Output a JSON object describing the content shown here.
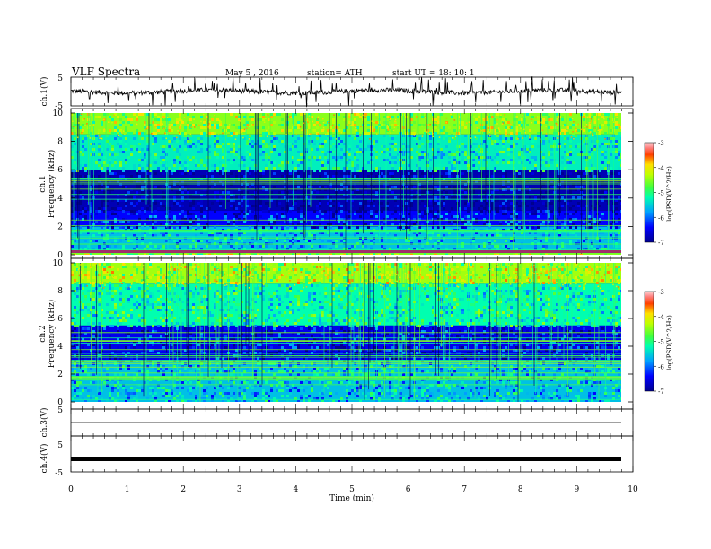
{
  "header": {
    "title": "VLF  Spectra",
    "date": "May 5  , 2016",
    "station": "station= ATH",
    "start": "start  UT  =    18: 10: 1"
  },
  "chart_data": [
    {
      "type": "line",
      "name": "ch1-waveform",
      "ylabel": "ch.1(V)",
      "ylim": [
        -5,
        5
      ],
      "yticks": [
        "5",
        "-5"
      ],
      "baseline": 0,
      "appearance": "dense noisy trace with sharp spikes",
      "xlim": [
        0,
        10
      ]
    },
    {
      "type": "heatmap",
      "name": "ch1-spectrogram",
      "ylabel_1": "ch.1",
      "ylabel_2": "Frequency  (kHz)",
      "ylim": [
        0,
        10
      ],
      "yticks": [
        "0",
        "2",
        "4",
        "6",
        "8",
        "10"
      ],
      "xlim": [
        0,
        9.8
      ],
      "colorbar": {
        "label": "log(PSD(V^2/Hz)",
        "range": [
          -7,
          -3
        ],
        "ticks": [
          "-3",
          "-4",
          "-5",
          "-6",
          "-7"
        ]
      },
      "bands_kHz": [
        {
          "from": 0.0,
          "to": 0.3,
          "level": -4.5
        },
        {
          "from": 0.3,
          "to": 2.0,
          "level": -5.6
        },
        {
          "from": 2.0,
          "to": 3.1,
          "level": -6.4
        },
        {
          "from": 3.1,
          "to": 6.0,
          "level": -6.8
        },
        {
          "from": 6.0,
          "to": 8.5,
          "level": -5.3
        },
        {
          "from": 8.5,
          "to": 10.0,
          "level": -4.5
        }
      ]
    },
    {
      "type": "heatmap",
      "name": "ch2-spectrogram",
      "ylabel_1": "ch.2",
      "ylabel_2": "Frequency  (kHz)",
      "ylim": [
        0,
        10
      ],
      "yticks": [
        "0",
        "2",
        "4",
        "6",
        "8",
        "10"
      ],
      "xlim": [
        0,
        9.8
      ],
      "colorbar": {
        "label": "log(PSD(V^2/Hz)",
        "range": [
          -7,
          -3
        ],
        "ticks": [
          "-3",
          "-4",
          "-5",
          "-6",
          "-7"
        ]
      },
      "bands_kHz": [
        {
          "from": 0.0,
          "to": 3.0,
          "level": -5.6
        },
        {
          "from": 3.0,
          "to": 5.5,
          "level": -6.5
        },
        {
          "from": 5.5,
          "to": 8.5,
          "level": -5.2
        },
        {
          "from": 8.5,
          "to": 10.0,
          "level": -4.4
        }
      ]
    },
    {
      "type": "line",
      "name": "ch3-waveform",
      "ylabel": "ch.3(V)",
      "ylim": [
        -5,
        5
      ],
      "yticks": [
        "5"
      ],
      "baseline": 0,
      "appearance": "flat line",
      "xlim": [
        0,
        10
      ]
    },
    {
      "type": "line",
      "name": "ch4-waveform",
      "ylabel": "ch.4(V)",
      "ylim": [
        -5,
        5
      ],
      "yticks": [
        "5",
        "-5"
      ],
      "baseline": 0,
      "appearance": "thick flat line",
      "xlim": [
        0,
        10
      ]
    }
  ],
  "xaxis": {
    "label": "Time  (min)",
    "range": [
      0,
      10
    ],
    "ticks": [
      "0",
      "1",
      "2",
      "3",
      "4",
      "5",
      "6",
      "7",
      "8",
      "9",
      "10"
    ]
  }
}
